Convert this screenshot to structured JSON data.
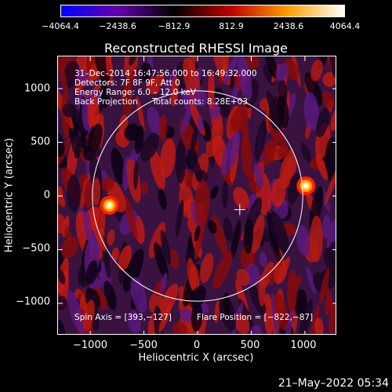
{
  "chart_data": {
    "type": "heatmap",
    "title": "Reconstructed RHESSI Image",
    "xlabel": "Heliocentric X (arcsec)",
    "ylabel": "Heliocentric Y (arcsec)",
    "xlim": [
      -1300,
      1300
    ],
    "ylim": [
      -1300,
      1300
    ],
    "xticks": [
      "−1000",
      "−500",
      "0",
      "500",
      "1000"
    ],
    "xtick_values": [
      -1000,
      -500,
      0,
      500,
      1000
    ],
    "yticks": [
      "1000",
      "500",
      "0",
      "−500",
      "−1000"
    ],
    "ytick_values": [
      1000,
      500,
      0,
      -500,
      -1000
    ],
    "colorbar": {
      "ticks": [
        "−4064.4",
        "−2438.6",
        "−812.9",
        "812.9",
        "2438.6",
        "4064.4"
      ],
      "tick_values": [
        -4064.4,
        -2438.6,
        -812.9,
        812.9,
        2438.6,
        4064.4
      ],
      "range": [
        -4064.4,
        4064.4
      ],
      "colors": [
        "#0000ff",
        "#6600aa",
        "#000000",
        "#c00000",
        "#ffa000",
        "#ffffff"
      ]
    },
    "annotations": {
      "time": "31–Dec–2014 16:47:56.000 to 16:49:32.000",
      "detectors": "Detectors: 7F 8F 9F, Att 0",
      "energy": "Energy Range: 6.0 – 12.0 keV",
      "method": "Back Projection",
      "counts": "Total counts: 8.28E+03",
      "spin_axis": "Spin Axis = [393,−127]",
      "flare_position": "Flare Position = [−822,−87]"
    },
    "solar_disk_radius_arcsec": 980,
    "spin_axis_marker": [
      393,
      -127
    ],
    "bright_sources": [
      {
        "x": -822,
        "y": -87
      },
      {
        "x": 1010,
        "y": 95
      }
    ]
  },
  "timestamp": "21–May–2022 05:34"
}
